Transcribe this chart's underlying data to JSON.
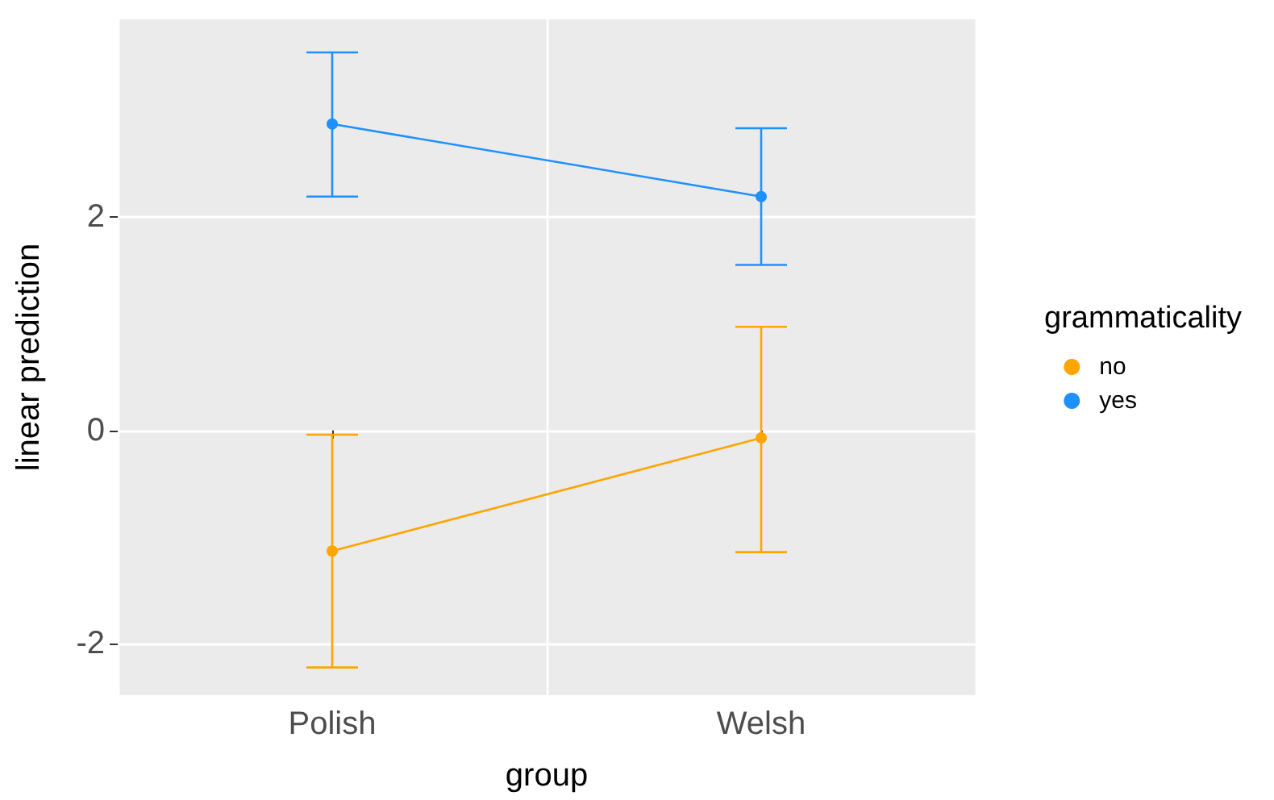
{
  "chart_data": {
    "type": "line",
    "xlabel": "group",
    "ylabel": "linear prediction",
    "legend_title": "grammaticality",
    "categories": [
      "Polish",
      "Welsh"
    ],
    "series": [
      {
        "name": "no",
        "color": "#ffa500",
        "values": [
          -1.13,
          -0.07
        ],
        "errors": [
          [
            -2.22,
            -0.04
          ],
          [
            -1.14,
            0.97
          ]
        ]
      },
      {
        "name": "yes",
        "color": "#1e90ff",
        "values": [
          2.87,
          2.19
        ],
        "errors": [
          [
            2.19,
            3.54
          ],
          [
            1.55,
            2.83
          ]
        ]
      }
    ],
    "ylim": [
      -2.48,
      3.85
    ],
    "yticks": [
      -2,
      0,
      2
    ],
    "grid": true,
    "legend": "right",
    "marker": "circle",
    "line_style": "solid"
  }
}
